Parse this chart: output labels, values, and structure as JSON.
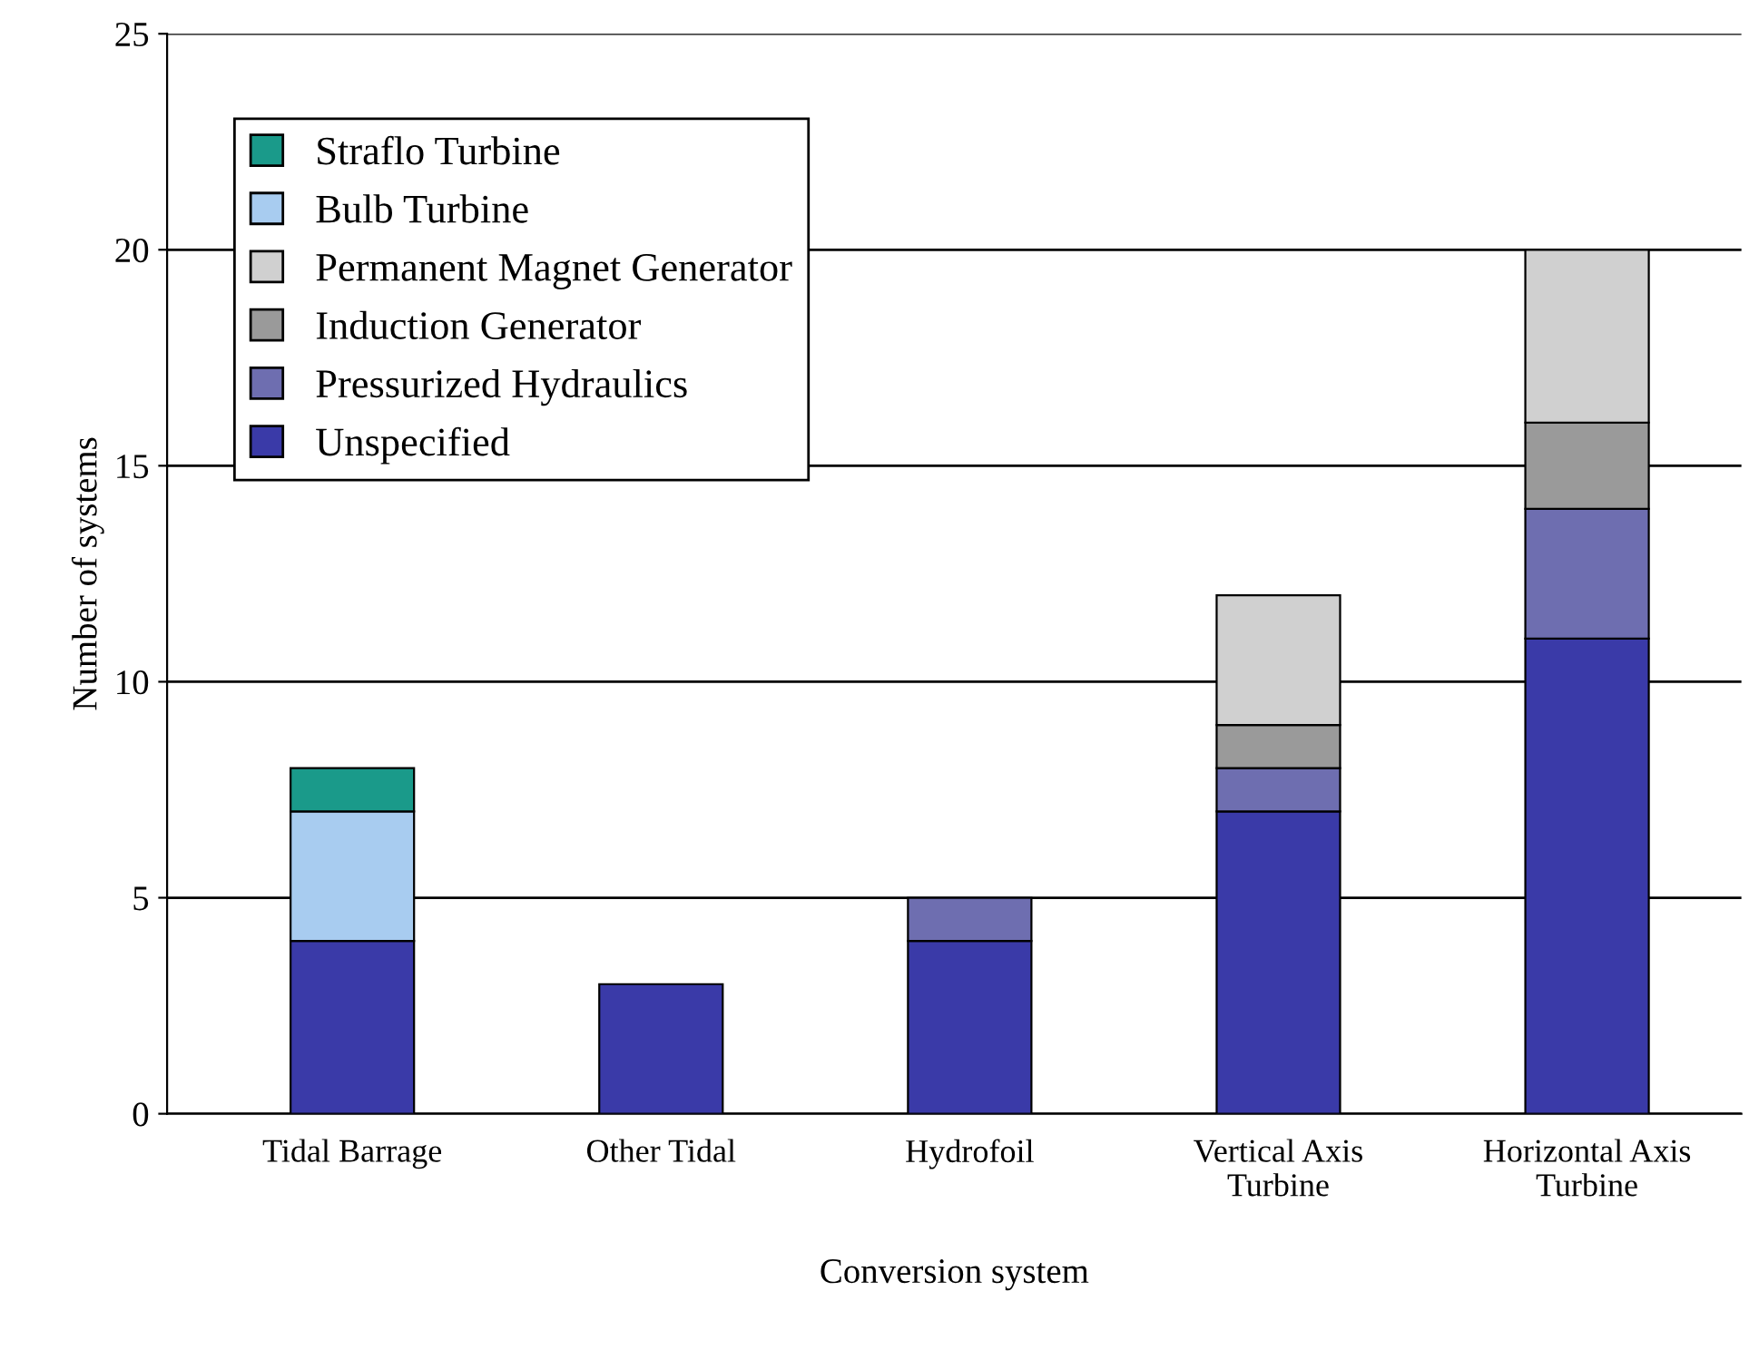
{
  "chart_data": {
    "type": "bar",
    "stacked": true,
    "xlabel": "Conversion system",
    "ylabel": "Number of systems",
    "categories": [
      "Tidal Barrage",
      "Other Tidal",
      "Hydrofoil",
      "Vertical Axis\nTurbine",
      "Horizontal Axis\nTurbine"
    ],
    "series": [
      {
        "name": "Unspecified",
        "color": "#3a3aa8",
        "values": [
          4,
          3,
          4,
          7,
          11
        ]
      },
      {
        "name": "Pressurized Hydraulics",
        "color": "#6e6eb0",
        "values": [
          null,
          null,
          1,
          1,
          3
        ]
      },
      {
        "name": "Induction Generator",
        "color": "#9a9a9a",
        "values": [
          null,
          null,
          null,
          1,
          2
        ]
      },
      {
        "name": "Permanent Magnet Generator",
        "color": "#d0d0d0",
        "values": [
          null,
          null,
          null,
          3,
          4
        ]
      },
      {
        "name": "Bulb Turbine",
        "color": "#a8ccf0",
        "values": [
          3,
          null,
          null,
          null,
          null
        ]
      },
      {
        "name": "Straflo Turbine",
        "color": "#1a9a8a",
        "values": [
          1,
          null,
          null,
          null,
          null
        ]
      }
    ],
    "ylim": [
      0,
      25
    ],
    "yticks": [
      0,
      5,
      10,
      15,
      20,
      25
    ],
    "grid": "y",
    "legend": "top left"
  }
}
